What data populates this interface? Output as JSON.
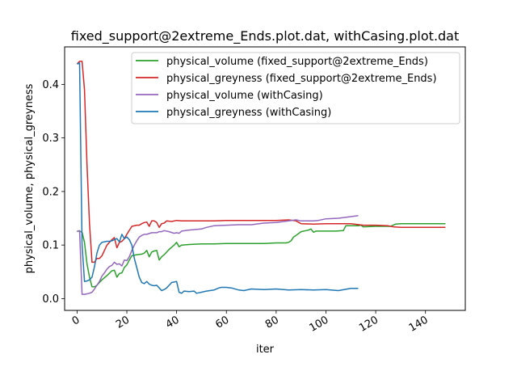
{
  "chart_data": {
    "type": "line",
    "title": "fixed_support@2extreme_Ends.plot.dat, withCasing.plot.dat",
    "xlabel": "iter",
    "ylabel": "physical_volume, physical_greyness",
    "xlim": [
      -5,
      156
    ],
    "ylim": [
      -0.022,
      0.47
    ],
    "xticks": [
      0,
      20,
      40,
      60,
      80,
      100,
      120,
      140
    ],
    "yticks": [
      0.0,
      0.1,
      0.2,
      0.3,
      0.4
    ],
    "ytick_labels": [
      "0.0",
      "0.1",
      "0.2",
      "0.3",
      "0.4"
    ],
    "grid": false,
    "legend_position": "top-right",
    "series": [
      {
        "name": "physical_volume (fixed_support@2extreme_Ends)",
        "color": "#2ca02c",
        "x": [
          0,
          1,
          2,
          3,
          4,
          5,
          6,
          7,
          8,
          9,
          10,
          12,
          14,
          15,
          16,
          17,
          18,
          19,
          20,
          21,
          22,
          24,
          26,
          27,
          28,
          29,
          30,
          31,
          32,
          33,
          34,
          35,
          37,
          39,
          40,
          41,
          42,
          45,
          50,
          55,
          60,
          65,
          70,
          75,
          80,
          84,
          85,
          86,
          87,
          88,
          90,
          92,
          93,
          94,
          95,
          96,
          100,
          104,
          107,
          108,
          110,
          113,
          114,
          115,
          120,
          125,
          126,
          127,
          128,
          130,
          135,
          140,
          145,
          148
        ],
        "y": [
          0.126,
          0.126,
          0.124,
          0.105,
          0.065,
          0.04,
          0.022,
          0.022,
          0.025,
          0.03,
          0.035,
          0.043,
          0.052,
          0.053,
          0.04,
          0.047,
          0.048,
          0.058,
          0.063,
          0.072,
          0.08,
          0.082,
          0.083,
          0.085,
          0.09,
          0.078,
          0.087,
          0.089,
          0.09,
          0.072,
          0.078,
          0.082,
          0.092,
          0.1,
          0.105,
          0.097,
          0.1,
          0.101,
          0.102,
          0.102,
          0.103,
          0.103,
          0.103,
          0.103,
          0.104,
          0.104,
          0.105,
          0.108,
          0.115,
          0.118,
          0.125,
          0.127,
          0.128,
          0.13,
          0.124,
          0.126,
          0.126,
          0.126,
          0.127,
          0.136,
          0.136,
          0.136,
          0.137,
          0.134,
          0.135,
          0.135,
          0.135,
          0.137,
          0.139,
          0.14,
          0.14,
          0.14,
          0.14,
          0.14
        ]
      },
      {
        "name": "physical_greyness (fixed_support@2extreme_Ends)",
        "color": "#d62728",
        "x": [
          0,
          1,
          2,
          3,
          4,
          5,
          6,
          7,
          8,
          9,
          10,
          11,
          12,
          13,
          14,
          15,
          16,
          17,
          18,
          19,
          20,
          22,
          24,
          25,
          26,
          27,
          28,
          29,
          30,
          31,
          32,
          33,
          34,
          35,
          36,
          38,
          40,
          42,
          45,
          50,
          55,
          60,
          65,
          70,
          75,
          80,
          85,
          88,
          90,
          95,
          100,
          105,
          110,
          115,
          120,
          125,
          127,
          130,
          135,
          140,
          145,
          148
        ],
        "y": [
          0.438,
          0.443,
          0.443,
          0.39,
          0.25,
          0.14,
          0.068,
          0.068,
          0.075,
          0.075,
          0.08,
          0.09,
          0.1,
          0.105,
          0.11,
          0.114,
          0.095,
          0.105,
          0.107,
          0.112,
          0.12,
          0.135,
          0.137,
          0.137,
          0.14,
          0.142,
          0.143,
          0.135,
          0.145,
          0.145,
          0.142,
          0.133,
          0.14,
          0.141,
          0.145,
          0.144,
          0.146,
          0.145,
          0.145,
          0.145,
          0.145,
          0.146,
          0.146,
          0.146,
          0.146,
          0.146,
          0.147,
          0.145,
          0.14,
          0.139,
          0.14,
          0.14,
          0.14,
          0.137,
          0.137,
          0.136,
          0.134,
          0.133,
          0.133,
          0.133,
          0.133,
          0.133
        ]
      },
      {
        "name": "physical_volume (withCasing)",
        "color": "#9467bd",
        "x": [
          0,
          1,
          2,
          3,
          4,
          5,
          6,
          7,
          8,
          9,
          10,
          11,
          12,
          13,
          14,
          15,
          16,
          17,
          18,
          19,
          20,
          21,
          22,
          23,
          24,
          25,
          26,
          27,
          28,
          30,
          32,
          33,
          34,
          35,
          37,
          39,
          40,
          41,
          42,
          45,
          50,
          52,
          55,
          60,
          65,
          70,
          75,
          80,
          85,
          88,
          90,
          95,
          97,
          100,
          105,
          110,
          113
        ],
        "y": [
          0.125,
          0.127,
          0.008,
          0.008,
          0.009,
          0.01,
          0.012,
          0.018,
          0.025,
          0.032,
          0.042,
          0.048,
          0.055,
          0.06,
          0.062,
          0.068,
          0.064,
          0.065,
          0.061,
          0.072,
          0.071,
          0.078,
          0.09,
          0.1,
          0.108,
          0.115,
          0.118,
          0.12,
          0.12,
          0.123,
          0.123,
          0.125,
          0.125,
          0.127,
          0.125,
          0.122,
          0.123,
          0.122,
          0.126,
          0.128,
          0.13,
          0.133,
          0.136,
          0.137,
          0.138,
          0.138,
          0.141,
          0.142,
          0.145,
          0.147,
          0.145,
          0.145,
          0.146,
          0.149,
          0.15,
          0.153,
          0.155
        ]
      },
      {
        "name": "physical_greyness (withCasing)",
        "color": "#1f77b4",
        "x": [
          0,
          1,
          2,
          3,
          4,
          5,
          6,
          7,
          8,
          9,
          10,
          12,
          13,
          14,
          15,
          16,
          17,
          18,
          19,
          20,
          21,
          22,
          23,
          24,
          25,
          26,
          27,
          28,
          29,
          30,
          31,
          32,
          33,
          34,
          35,
          36,
          37,
          38,
          39,
          40,
          41,
          42,
          43,
          45,
          47,
          48,
          50,
          52,
          55,
          57,
          58,
          60,
          62,
          65,
          67,
          70,
          75,
          80,
          85,
          90,
          95,
          100,
          105,
          110,
          113
        ],
        "y": [
          0.438,
          0.44,
          0.1,
          0.032,
          0.033,
          0.035,
          0.04,
          0.06,
          0.085,
          0.1,
          0.105,
          0.107,
          0.107,
          0.108,
          0.11,
          0.112,
          0.106,
          0.12,
          0.112,
          0.115,
          0.11,
          0.1,
          0.075,
          0.058,
          0.04,
          0.03,
          0.028,
          0.032,
          0.027,
          0.025,
          0.024,
          0.025,
          0.02,
          0.015,
          0.017,
          0.02,
          0.025,
          0.03,
          0.031,
          0.032,
          0.012,
          0.01,
          0.014,
          0.013,
          0.014,
          0.01,
          0.012,
          0.014,
          0.016,
          0.02,
          0.021,
          0.021,
          0.02,
          0.016,
          0.015,
          0.018,
          0.017,
          0.018,
          0.016,
          0.017,
          0.016,
          0.017,
          0.015,
          0.019,
          0.019
        ]
      }
    ]
  }
}
